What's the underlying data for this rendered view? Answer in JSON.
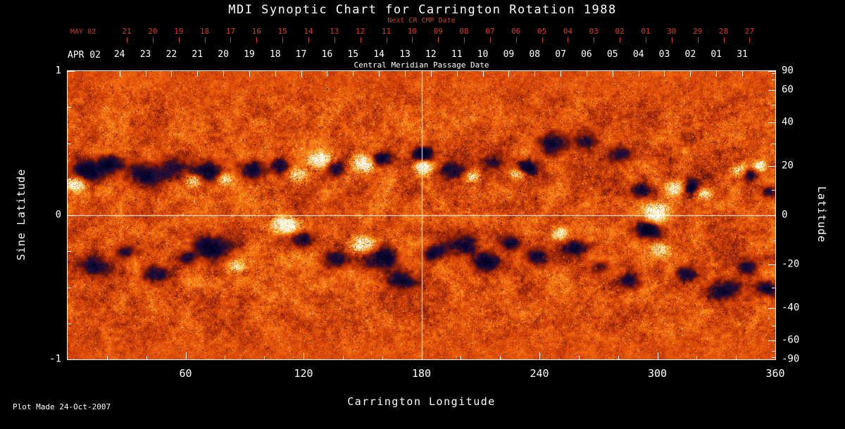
{
  "colors": {
    "background": "#000000",
    "text": "#ffffff",
    "red_axis": "#d63b18"
  },
  "footer": {
    "plot_made": "Plot Made 24-Oct-2007"
  },
  "chart_data": {
    "type": "heatmap",
    "title": "MDI Synoptic Chart for Carrington Rotation 1988",
    "description": "SOHO/MDI photospheric magnetic field synoptic map for Carrington rotation 1988 (2002 March 31 - April 27). Orange/red granular background with negative-polarity (dark navy/black) and positive-polarity (white/yellow) active regions concentrated in activity bands near +/-20 degrees latitude. White crosshair at Carrington longitude 180 and sine latitude 0.",
    "xlabel": "Carrington Longitude",
    "xlim": [
      0,
      360
    ],
    "ylabel_left": "Sine Latitude",
    "ylabel_right": "Latitude",
    "ylim_sine": [
      -1,
      1
    ],
    "grid": false,
    "crosshair": {
      "lon": 180,
      "sine_lat": 0
    },
    "axes": {
      "bottom": {
        "major": [
          60,
          120,
          180,
          240,
          300,
          360
        ],
        "minor": [
          20,
          40,
          80,
          100,
          140,
          160,
          200,
          220,
          260,
          280,
          320,
          340
        ]
      },
      "left": {
        "major": [
          {
            "v": 1,
            "label": "1"
          },
          {
            "v": 0,
            "label": "0"
          },
          {
            "v": -1,
            "label": "-1"
          }
        ],
        "minor": [
          0.75,
          0.5,
          0.25,
          -0.25,
          -0.5,
          -0.75
        ]
      },
      "right": {
        "major": [
          {
            "lat": 90,
            "label": "90"
          },
          {
            "lat": 60,
            "label": "60"
          },
          {
            "lat": 40,
            "label": "40"
          },
          {
            "lat": 20,
            "label": "20"
          },
          {
            "lat": 0,
            "label": "0"
          },
          {
            "lat": -20,
            "label": "-20"
          },
          {
            "lat": -40,
            "label": "-40"
          },
          {
            "lat": -60,
            "label": "-60"
          },
          {
            "lat": -90,
            "label": "-90"
          }
        ],
        "minor": [
          80,
          70,
          50,
          30,
          10,
          -10,
          -30,
          -50,
          -70,
          -80
        ]
      }
    },
    "top_axis": {
      "label": "Central Meridian Passage Date",
      "month_label": "APR 02",
      "start_lon": 26.4,
      "step_lon": 13.199,
      "tick_labels": [
        "24",
        "23",
        "22",
        "21",
        "20",
        "19",
        "18",
        "17",
        "16",
        "15",
        "14",
        "13",
        "12",
        "11",
        "10",
        "09",
        "08",
        "07",
        "06",
        "05",
        "04",
        "03",
        "02",
        "01",
        "31"
      ]
    },
    "next_cr_axis": {
      "label": "Next CR CMP Date",
      "month_label": "MAY 02",
      "start_lon": 30.1,
      "step_lon": 13.199,
      "tick_labels": [
        "21",
        "20",
        "19",
        "18",
        "17",
        "16",
        "15",
        "14",
        "13",
        "12",
        "11",
        "10",
        "09",
        "08",
        "07",
        "06",
        "05",
        "04",
        "03",
        "02",
        "01",
        "30",
        "29",
        "28",
        "27"
      ]
    },
    "colormap": [
      [
        -1.0,
        [
          2,
          2,
          30
        ]
      ],
      [
        -0.75,
        [
          10,
          8,
          52
        ]
      ],
      [
        -0.55,
        [
          30,
          12,
          58
        ]
      ],
      [
        -0.4,
        [
          72,
          16,
          30
        ]
      ],
      [
        -0.25,
        [
          132,
          30,
          10
        ]
      ],
      [
        -0.1,
        [
          184,
          50,
          6
        ]
      ],
      [
        0.0,
        [
          208,
          64,
          8
        ]
      ],
      [
        0.12,
        [
          230,
          84,
          10
        ]
      ],
      [
        0.25,
        [
          244,
          110,
          16
        ]
      ],
      [
        0.4,
        [
          250,
          142,
          30
        ]
      ],
      [
        0.55,
        [
          253,
          174,
          50
        ]
      ],
      [
        0.7,
        [
          255,
          206,
          84
        ]
      ],
      [
        0.82,
        [
          255,
          233,
          144
        ]
      ],
      [
        0.92,
        [
          255,
          249,
          214
        ]
      ],
      [
        1.0,
        [
          255,
          255,
          255
        ]
      ]
    ],
    "noise": {
      "seed": 19880424,
      "base": 0.09,
      "amp_fine": 0.42,
      "amp_med": 0.32,
      "amp_large": 0.28,
      "scale_med": 5,
      "scale_large": 19,
      "band_boost": 0.8,
      "band_center": 0.3,
      "band_width": 0.3
    },
    "active_regions": [
      {
        "lon": 4,
        "slat": 0.22,
        "rlon": 5,
        "rslat": 0.05,
        "pol": 1,
        "s": 1.3
      },
      {
        "lon": 10,
        "slat": 0.3,
        "rlon": 8,
        "rslat": 0.07,
        "pol": -1,
        "s": 1.0
      },
      {
        "lon": 22,
        "slat": 0.36,
        "rlon": 6,
        "rslat": 0.06,
        "pol": -1,
        "s": 0.8
      },
      {
        "lon": 38,
        "slat": 0.28,
        "rlon": 10,
        "rslat": 0.08,
        "pol": -1,
        "s": 0.9
      },
      {
        "lon": 54,
        "slat": 0.34,
        "rlon": 7,
        "rslat": 0.06,
        "pol": -1,
        "s": 0.7
      },
      {
        "lon": 64,
        "slat": 0.24,
        "rlon": 4,
        "rslat": 0.04,
        "pol": 1,
        "s": 1.0
      },
      {
        "lon": 71,
        "slat": 0.31,
        "rlon": 8,
        "rslat": 0.07,
        "pol": -1,
        "s": 1.0
      },
      {
        "lon": 80,
        "slat": 0.25,
        "rlon": 4,
        "rslat": 0.04,
        "pol": 1,
        "s": 0.9
      },
      {
        "lon": 93,
        "slat": 0.31,
        "rlon": 7,
        "rslat": 0.06,
        "pol": -1,
        "s": 0.8
      },
      {
        "lon": 108,
        "slat": 0.34,
        "rlon": 6,
        "rslat": 0.06,
        "pol": -1,
        "s": 0.9
      },
      {
        "lon": 117,
        "slat": 0.28,
        "rlon": 5,
        "rslat": 0.05,
        "pol": 1,
        "s": 0.9
      },
      {
        "lon": 128,
        "slat": 0.38,
        "rlon": 6,
        "rslat": 0.05,
        "pol": 1,
        "s": 1.1
      },
      {
        "lon": 136,
        "slat": 0.33,
        "rlon": 5,
        "rslat": 0.05,
        "pol": -1,
        "s": 0.7
      },
      {
        "lon": 151,
        "slat": 0.36,
        "rlon": 6,
        "rslat": 0.06,
        "pol": 1,
        "s": 1.2
      },
      {
        "lon": 159,
        "slat": 0.39,
        "rlon": 6,
        "rslat": 0.05,
        "pol": -1,
        "s": 1.0
      },
      {
        "lon": 181,
        "slat": 0.33,
        "rlon": 4,
        "rslat": 0.045,
        "pol": 1,
        "s": 1.4
      },
      {
        "lon": 181,
        "slat": 0.42,
        "rlon": 5,
        "rslat": 0.05,
        "pol": -1,
        "s": 0.9
      },
      {
        "lon": 196,
        "slat": 0.31,
        "rlon": 7,
        "rslat": 0.06,
        "pol": -1,
        "s": 0.9
      },
      {
        "lon": 206,
        "slat": 0.27,
        "rlon": 4,
        "rslat": 0.04,
        "pol": 1,
        "s": 0.8
      },
      {
        "lon": 217,
        "slat": 0.36,
        "rlon": 6,
        "rslat": 0.05,
        "pol": -1,
        "s": 0.7
      },
      {
        "lon": 229,
        "slat": 0.29,
        "rlon": 4,
        "rslat": 0.04,
        "pol": 1,
        "s": 0.9
      },
      {
        "lon": 234,
        "slat": 0.33,
        "rlon": 6,
        "rslat": 0.05,
        "pol": -1,
        "s": 0.9
      },
      {
        "lon": 247,
        "slat": 0.5,
        "rlon": 8,
        "rslat": 0.07,
        "pol": -1,
        "s": 0.8
      },
      {
        "lon": 263,
        "slat": 0.52,
        "rlon": 7,
        "rslat": 0.06,
        "pol": -1,
        "s": 0.7
      },
      {
        "lon": 281,
        "slat": 0.42,
        "rlon": 5,
        "rslat": 0.05,
        "pol": -1,
        "s": 0.6
      },
      {
        "lon": 292,
        "slat": 0.17,
        "rlon": 5,
        "rslat": 0.05,
        "pol": -1,
        "s": 0.9
      },
      {
        "lon": 299,
        "slat": 0.02,
        "rlon": 6,
        "rslat": 0.06,
        "pol": 1,
        "s": 1.4
      },
      {
        "lon": 295,
        "slat": -0.1,
        "rlon": 6,
        "rslat": 0.05,
        "pol": -1,
        "s": 1.1
      },
      {
        "lon": 310,
        "slat": 0.19,
        "rlon": 5,
        "rslat": 0.05,
        "pol": 1,
        "s": 1.1
      },
      {
        "lon": 317,
        "slat": 0.19,
        "rlon": 5,
        "rslat": 0.05,
        "pol": -1,
        "s": 1.0
      },
      {
        "lon": 324,
        "slat": 0.15,
        "rlon": 4,
        "rslat": 0.04,
        "pol": 1,
        "s": 0.9
      },
      {
        "lon": 342,
        "slat": 0.31,
        "rlon": 4,
        "rslat": 0.04,
        "pol": 1,
        "s": 0.9
      },
      {
        "lon": 347,
        "slat": 0.29,
        "rlon": 4,
        "rslat": 0.04,
        "pol": -1,
        "s": 0.8
      },
      {
        "lon": 352,
        "slat": 0.34,
        "rlon": 3,
        "rslat": 0.035,
        "pol": 1,
        "s": 1.1
      },
      {
        "lon": 357,
        "slat": 0.16,
        "rlon": 4,
        "rslat": 0.04,
        "pol": -1,
        "s": 0.8
      },
      {
        "lon": 15,
        "slat": -0.36,
        "rlon": 8,
        "rslat": 0.07,
        "pol": -1,
        "s": 0.8
      },
      {
        "lon": 30,
        "slat": -0.26,
        "rlon": 6,
        "rslat": 0.05,
        "pol": -1,
        "s": 0.7
      },
      {
        "lon": 45,
        "slat": -0.41,
        "rlon": 7,
        "rslat": 0.06,
        "pol": -1,
        "s": 0.8
      },
      {
        "lon": 61,
        "slat": -0.3,
        "rlon": 5,
        "rslat": 0.05,
        "pol": -1,
        "s": 0.6
      },
      {
        "lon": 73,
        "slat": -0.23,
        "rlon": 9,
        "rslat": 0.08,
        "pol": -1,
        "s": 1.0
      },
      {
        "lon": 86,
        "slat": -0.36,
        "rlon": 4,
        "rslat": 0.04,
        "pol": 1,
        "s": 0.7
      },
      {
        "lon": 111,
        "slat": -0.07,
        "rlon": 6,
        "rslat": 0.05,
        "pol": 1,
        "s": 1.5
      },
      {
        "lon": 119,
        "slat": -0.16,
        "rlon": 6,
        "rslat": 0.05,
        "pol": -1,
        "s": 0.9
      },
      {
        "lon": 136,
        "slat": -0.31,
        "rlon": 7,
        "rslat": 0.06,
        "pol": -1,
        "s": 0.8
      },
      {
        "lon": 150,
        "slat": -0.21,
        "rlon": 6,
        "rslat": 0.06,
        "pol": 1,
        "s": 1.3
      },
      {
        "lon": 159,
        "slat": -0.29,
        "rlon": 9,
        "rslat": 0.08,
        "pol": -1,
        "s": 1.1
      },
      {
        "lon": 170,
        "slat": -0.46,
        "rlon": 7,
        "rslat": 0.06,
        "pol": -1,
        "s": 0.9
      },
      {
        "lon": 186,
        "slat": -0.26,
        "rlon": 6,
        "rslat": 0.05,
        "pol": -1,
        "s": 0.8
      },
      {
        "lon": 201,
        "slat": -0.21,
        "rlon": 8,
        "rslat": 0.07,
        "pol": -1,
        "s": 1.0
      },
      {
        "lon": 213,
        "slat": -0.33,
        "rlon": 7,
        "rslat": 0.06,
        "pol": -1,
        "s": 0.9
      },
      {
        "lon": 226,
        "slat": -0.19,
        "rlon": 6,
        "rslat": 0.05,
        "pol": -1,
        "s": 0.8
      },
      {
        "lon": 239,
        "slat": -0.29,
        "rlon": 7,
        "rslat": 0.06,
        "pol": -1,
        "s": 0.9
      },
      {
        "lon": 250,
        "slat": -0.13,
        "rlon": 4,
        "rslat": 0.04,
        "pol": 1,
        "s": 0.9
      },
      {
        "lon": 259,
        "slat": -0.23,
        "rlon": 6,
        "rslat": 0.05,
        "pol": -1,
        "s": 0.8
      },
      {
        "lon": 271,
        "slat": -0.36,
        "rlon": 6,
        "rslat": 0.05,
        "pol": -1,
        "s": 0.7
      },
      {
        "lon": 286,
        "slat": -0.46,
        "rlon": 6,
        "rslat": 0.06,
        "pol": -1,
        "s": 0.8
      },
      {
        "lon": 301,
        "slat": -0.24,
        "rlon": 5,
        "rslat": 0.05,
        "pol": 1,
        "s": 0.8
      },
      {
        "lon": 316,
        "slat": -0.41,
        "rlon": 6,
        "rslat": 0.05,
        "pol": -1,
        "s": 0.8
      },
      {
        "lon": 333,
        "slat": -0.52,
        "rlon": 8,
        "rslat": 0.07,
        "pol": -1,
        "s": 1.0
      },
      {
        "lon": 346,
        "slat": -0.36,
        "rlon": 5,
        "rslat": 0.05,
        "pol": -1,
        "s": 0.7
      },
      {
        "lon": 356,
        "slat": -0.51,
        "rlon": 6,
        "rslat": 0.05,
        "pol": -1,
        "s": 0.9
      }
    ]
  }
}
